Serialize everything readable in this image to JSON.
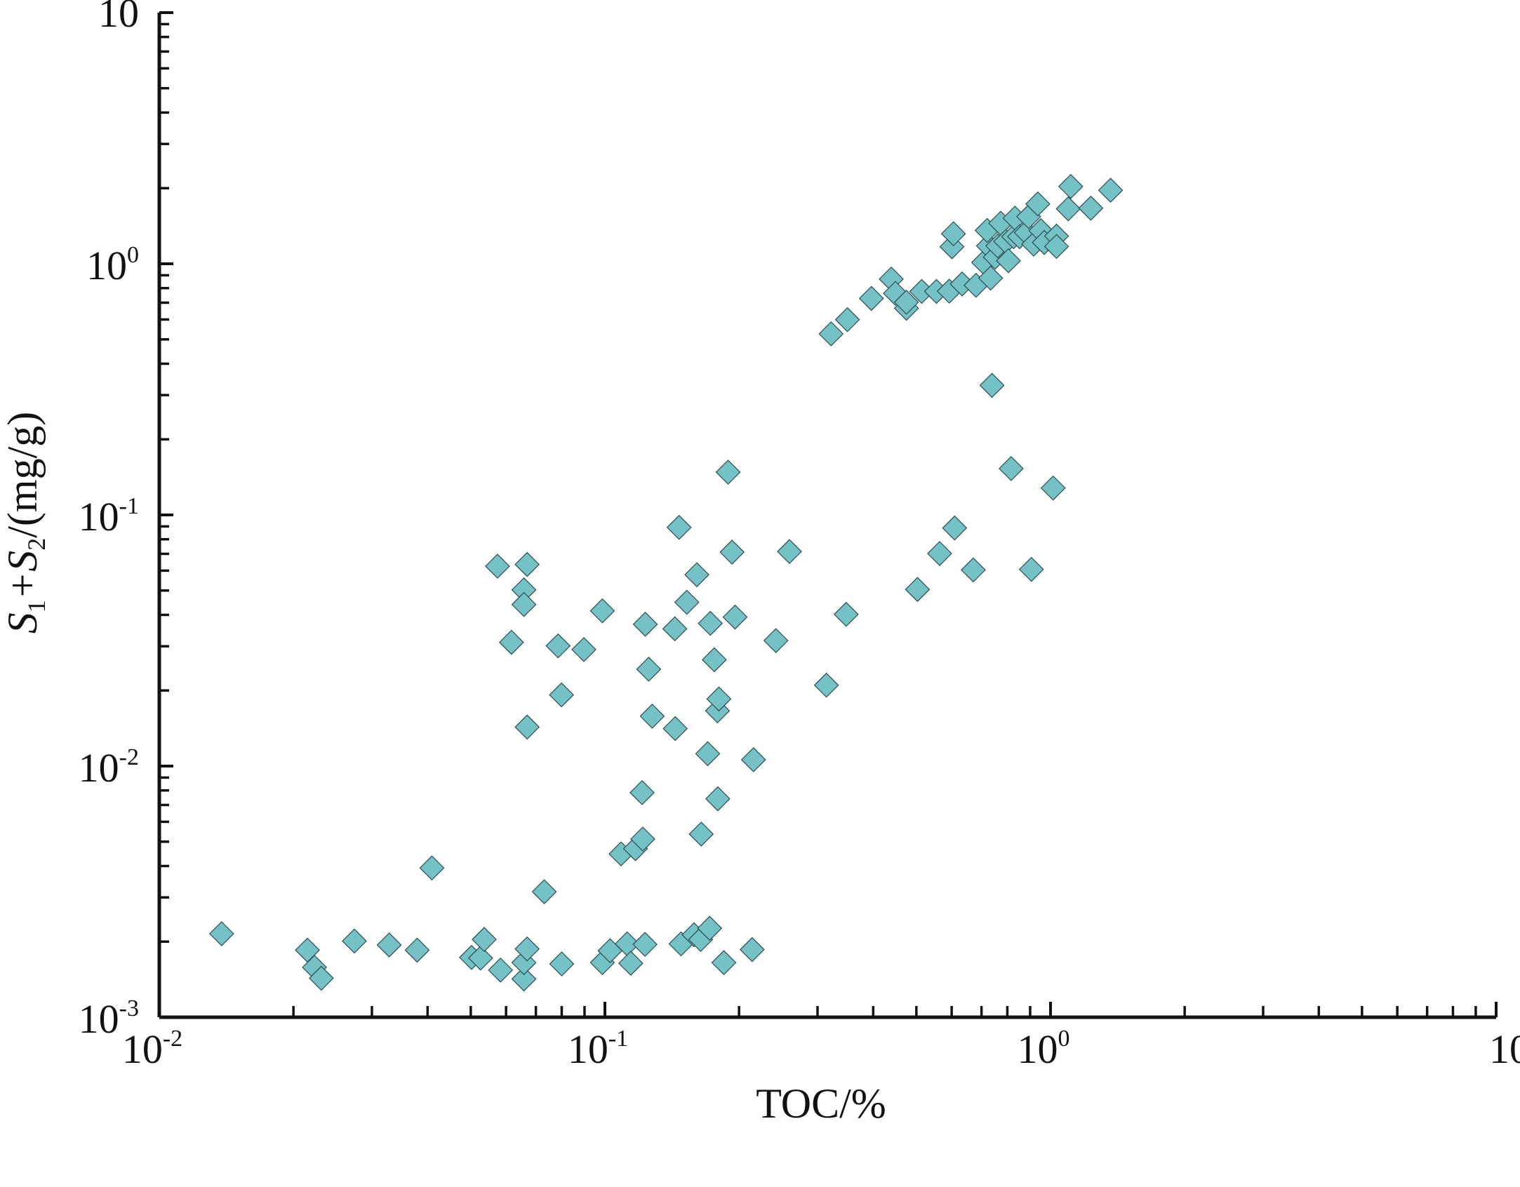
{
  "chart_data": {
    "type": "scatter",
    "title": "",
    "xlabel": "TOC/%",
    "ylabel": {
      "prefix": "S",
      "sub1": "1",
      "mid": "+S",
      "sub2": "2",
      "suffix": "/(mg/g)"
    },
    "x_scale": "log",
    "y_scale": "log",
    "xlim": [
      0.01,
      10
    ],
    "ylim": [
      0.001,
      10
    ],
    "x_tick_labels": [
      {
        "base": "10",
        "exp": "-2",
        "value": 0.01
      },
      {
        "base": "10",
        "exp": "-1",
        "value": 0.1
      },
      {
        "base": "10",
        "exp": "0",
        "value": 1
      },
      {
        "base": "10",
        "exp": "",
        "value": 10
      }
    ],
    "y_tick_labels": [
      {
        "base": "10",
        "exp": "-3",
        "value": 0.001
      },
      {
        "base": "10",
        "exp": "-2",
        "value": 0.01
      },
      {
        "base": "10",
        "exp": "-1",
        "value": 0.1
      },
      {
        "base": "10",
        "exp": "0",
        "value": 1
      },
      {
        "base": "10",
        "exp": "",
        "value": 10
      }
    ],
    "grid": false,
    "legend": "none",
    "marker": "diamond",
    "marker_color": "#74c2c6",
    "marker_edge_color": "#2b4c50",
    "series": [
      {
        "points": [
          [
            0.0138,
            0.00215
          ],
          [
            0.0215,
            0.00185
          ],
          [
            0.0223,
            0.00158
          ],
          [
            0.0231,
            0.00143
          ],
          [
            0.0274,
            0.00201
          ],
          [
            0.0328,
            0.00194
          ],
          [
            0.0379,
            0.00185
          ],
          [
            0.0409,
            0.00393
          ],
          [
            0.0502,
            0.00173
          ],
          [
            0.0526,
            0.00172
          ],
          [
            0.0536,
            0.00204
          ],
          [
            0.0583,
            0.00154
          ],
          [
            0.0574,
            0.0625
          ],
          [
            0.0617,
            0.0311
          ],
          [
            0.0658,
            0.00142
          ],
          [
            0.0658,
            0.00165
          ],
          [
            0.0669,
            0.00187
          ],
          [
            0.0658,
            0.0503
          ],
          [
            0.0669,
            0.0635
          ],
          [
            0.0658,
            0.044
          ],
          [
            0.0669,
            0.0143
          ],
          [
            0.0731,
            0.00316
          ],
          [
            0.0785,
            0.0301
          ],
          [
            0.0799,
            0.0192
          ],
          [
            0.08,
            0.00163
          ],
          [
            0.0897,
            0.0291
          ],
          [
            0.0987,
            0.0415
          ],
          [
            0.0987,
            0.00165
          ],
          [
            0.1027,
            0.00184
          ],
          [
            0.1087,
            0.00447
          ],
          [
            0.1122,
            0.00196
          ],
          [
            0.1143,
            0.00164
          ],
          [
            0.1171,
            0.00469
          ],
          [
            0.1216,
            0.00512
          ],
          [
            0.1212,
            0.00784
          ],
          [
            0.123,
            0.00195
          ],
          [
            0.1232,
            0.0367
          ],
          [
            0.1254,
            0.0243
          ],
          [
            0.1277,
            0.0158
          ],
          [
            0.1438,
            0.0141
          ],
          [
            0.1435,
            0.0352
          ],
          [
            0.1482,
            0.00196
          ],
          [
            0.1467,
            0.0892
          ],
          [
            0.1527,
            0.0449
          ],
          [
            0.1585,
            0.00213
          ],
          [
            0.1608,
            0.0578
          ],
          [
            0.164,
            0.00204
          ],
          [
            0.1645,
            0.00536
          ],
          [
            0.1701,
            0.0112
          ],
          [
            0.1718,
            0.00226
          ],
          [
            0.1724,
            0.037
          ],
          [
            0.176,
            0.0265
          ],
          [
            0.1789,
            0.0166
          ],
          [
            0.1792,
            0.00741
          ],
          [
            0.1802,
            0.0185
          ],
          [
            0.1849,
            0.00165
          ],
          [
            0.189,
            0.148
          ],
          [
            0.1929,
            0.0711
          ],
          [
            0.1959,
            0.0392
          ],
          [
            0.214,
            0.00186
          ],
          [
            0.2155,
            0.0106
          ],
          [
            0.242,
            0.0316
          ],
          [
            0.2595,
            0.0715
          ],
          [
            0.3141,
            0.021
          ],
          [
            0.3218,
            0.526
          ],
          [
            0.3479,
            0.0402
          ],
          [
            0.3501,
            0.599
          ],
          [
            0.3963,
            0.728
          ],
          [
            0.4391,
            0.869
          ],
          [
            0.4487,
            0.762
          ],
          [
            0.4749,
            0.665
          ],
          [
            0.4749,
            0.703
          ],
          [
            0.5029,
            0.0505
          ],
          [
            0.514,
            0.776
          ],
          [
            0.5546,
            0.776
          ],
          [
            0.5638,
            0.0702
          ],
          [
            0.5926,
            0.778
          ],
          [
            0.6009,
            1.169
          ],
          [
            0.6056,
            1.317
          ],
          [
            0.6093,
            0.0887
          ],
          [
            0.6334,
            0.831
          ],
          [
            0.6709,
            0.0604
          ],
          [
            0.6805,
            0.821
          ],
          [
            0.7078,
            1.012
          ],
          [
            0.7255,
            1.178
          ],
          [
            0.7207,
            1.358
          ],
          [
            0.7337,
            0.877
          ],
          [
            0.739,
            0.328
          ],
          [
            0.7514,
            1.063
          ],
          [
            0.7615,
            1.178
          ],
          [
            0.773,
            1.45
          ],
          [
            0.7935,
            1.227
          ],
          [
            0.8045,
            1.028
          ],
          [
            0.8159,
            0.153
          ],
          [
            0.8267,
            1.282
          ],
          [
            0.8323,
            1.519
          ],
          [
            0.8522,
            1.282
          ],
          [
            0.8823,
            1.331
          ],
          [
            0.8933,
            1.541
          ],
          [
            0.906,
            0.0607
          ],
          [
            0.9165,
            1.197
          ],
          [
            0.9364,
            1.731
          ],
          [
            0.9514,
            1.355
          ],
          [
            0.9682,
            1.216
          ],
          [
            1.0136,
            0.128
          ],
          [
            1.0314,
            1.289
          ],
          [
            1.0314,
            1.172
          ],
          [
            1.096,
            1.655
          ],
          [
            1.1101,
            2.032
          ],
          [
            1.2315,
            1.665
          ],
          [
            1.3638,
            1.962
          ]
        ]
      }
    ]
  }
}
